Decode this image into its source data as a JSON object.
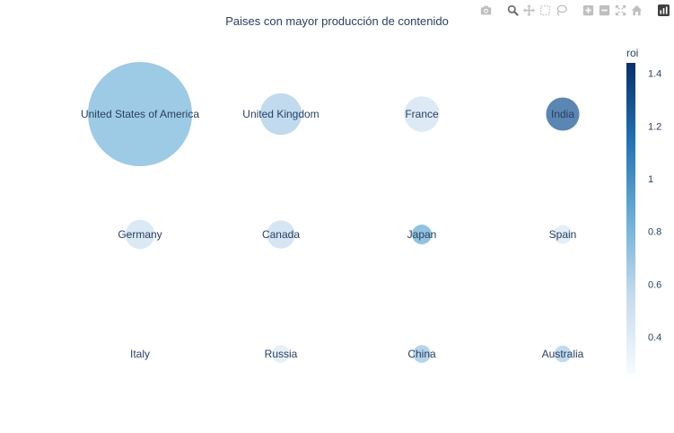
{
  "chart_data": {
    "type": "scatter",
    "title": "Paises con mayor producción de contenido",
    "points": [
      {
        "label": "United States of America",
        "roi": 0.82,
        "size": 1.0
      },
      {
        "label": "United Kingdom",
        "roi": 0.66,
        "size": 0.4
      },
      {
        "label": "France",
        "roi": 0.5,
        "size": 0.34
      },
      {
        "label": "India",
        "roi": 1.28,
        "size": 0.32
      },
      {
        "label": "Germany",
        "roi": 0.52,
        "size": 0.28
      },
      {
        "label": "Canada",
        "roi": 0.56,
        "size": 0.27
      },
      {
        "label": "Japan",
        "roi": 0.88,
        "size": 0.19
      },
      {
        "label": "Spain",
        "roi": 0.44,
        "size": 0.18
      },
      {
        "label": "Italy",
        "roi": 0.4,
        "size": 0.0
      },
      {
        "label": "Russia",
        "roi": 0.42,
        "size": 0.17
      },
      {
        "label": "China",
        "roi": 0.72,
        "size": 0.17
      },
      {
        "label": "Australia",
        "roi": 0.66,
        "size": 0.16
      }
    ],
    "layout": {
      "rows": 3,
      "cols": 4
    },
    "colorbar": {
      "title": "roi",
      "min": 0.26,
      "max": 1.44,
      "ticks": [
        0.4,
        0.6,
        0.8,
        1,
        1.2,
        1.4
      ],
      "colorscale": [
        "#f7fbff",
        "#c6dbef",
        "#6baed6",
        "#2171b5",
        "#08306b"
      ]
    },
    "marker_opacity": 0.7,
    "grid": false
  },
  "toolbar": {
    "icons": [
      "camera-icon",
      "zoom-icon",
      "pan-icon",
      "box-select-icon",
      "lasso-icon",
      "zoom-in-icon",
      "zoom-out-icon",
      "autoscale-icon",
      "reset-axes-icon",
      "plotly-logo-icon"
    ]
  }
}
